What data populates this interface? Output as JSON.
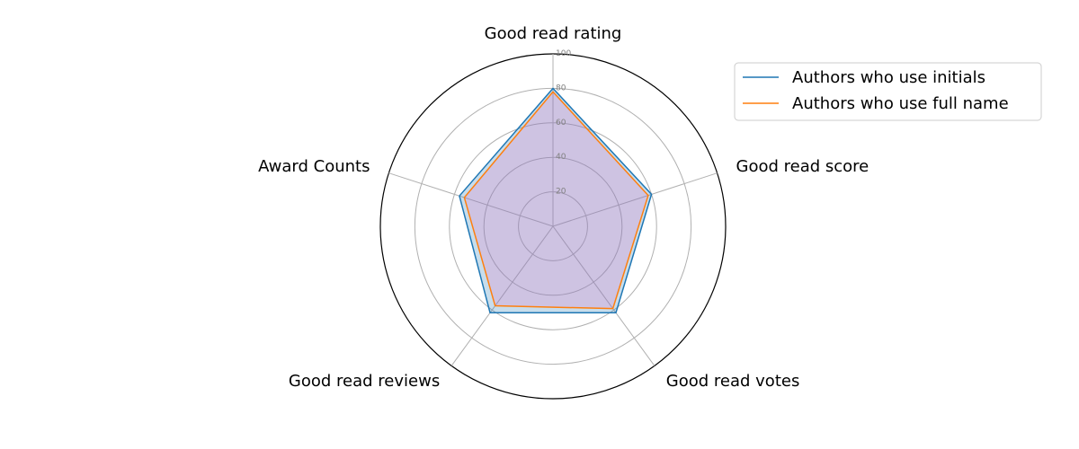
{
  "chart_data": {
    "type": "radar",
    "title": "",
    "axes": [
      "Good read rating",
      "Good read score",
      "Good read votes",
      "Good read reviews",
      "Award Counts"
    ],
    "rlim": [
      0,
      100
    ],
    "rticks": [
      "20",
      "40",
      "60",
      "80",
      "100"
    ],
    "grid": true,
    "legend_position": "top-right",
    "series": [
      {
        "name": "Authors who use initials",
        "values": [
          80,
          60,
          62,
          62,
          57
        ],
        "color": "#1f77b4",
        "fill": "#1f77b4"
      },
      {
        "name": "Authors who use full name",
        "values": [
          78,
          58,
          59,
          57,
          54
        ],
        "color": "#ff7f0e",
        "fill": "#e377c2"
      }
    ]
  }
}
